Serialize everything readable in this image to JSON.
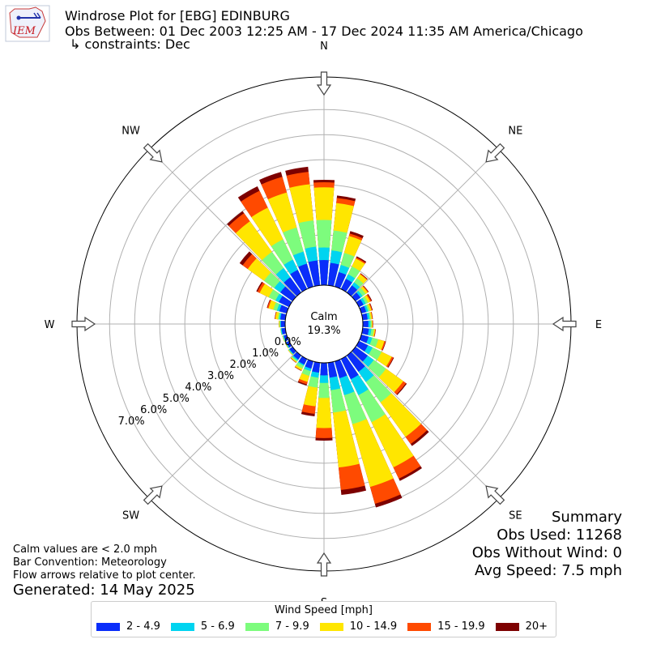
{
  "header": {
    "logo_text": "IEM",
    "title": "Windrose Plot for [EBG] EDINBURG",
    "obs_between": "Obs Between: 01 Dec 2003 12:25 AM - 17 Dec 2024 11:35 AM America/Chicago",
    "constraints": "↳ constraints: Dec"
  },
  "summary": {
    "heading": "Summary",
    "obs_used": "Obs Used: 11268",
    "obs_without_wind": "Obs Without Wind: 0",
    "avg_speed": "Avg Speed: 7.5 mph"
  },
  "notes": {
    "calm": "Calm values are < 2.0 mph",
    "bar_convention": "Bar Convention: Meteorology",
    "flow_arrows": "Flow arrows relative to plot center.",
    "generated": "Generated: 14 May 2025"
  },
  "legend": {
    "title": "Wind Speed [mph]",
    "bins": [
      {
        "label": "2 - 4.9",
        "color": "#0a2dfa"
      },
      {
        "label": "5 - 6.9",
        "color": "#00d4f0"
      },
      {
        "label": "7 - 9.9",
        "color": "#7dfc7d"
      },
      {
        "label": "10 - 14.9",
        "color": "#ffe600"
      },
      {
        "label": "15 - 19.9",
        "color": "#ff4a00"
      },
      {
        "label": "20+",
        "color": "#7d0000"
      }
    ]
  },
  "chart_data": {
    "type": "windrose",
    "calm_label": "Calm",
    "calm_value": "19.3%",
    "bar_convention": "meteorology",
    "radial_ticks": [
      "0.0%",
      "1.0%",
      "2.0%",
      "3.0%",
      "4.0%",
      "5.0%",
      "6.0%",
      "7.0%"
    ],
    "radial_tick_values": [
      0,
      1,
      2,
      3,
      4,
      5,
      6,
      7
    ],
    "rmax_percent": 8.3,
    "direction_labels": [
      "N",
      "NE",
      "E",
      "SE",
      "S",
      "SW",
      "W",
      "NW"
    ],
    "speed_bins": [
      "2 - 4.9",
      "5 - 6.9",
      "7 - 9.9",
      "10 - 14.9",
      "15 - 19.9",
      "20+"
    ],
    "directions_deg": [
      0,
      10,
      20,
      30,
      40,
      50,
      60,
      70,
      80,
      90,
      100,
      110,
      120,
      130,
      140,
      150,
      160,
      170,
      180,
      190,
      200,
      210,
      220,
      230,
      240,
      250,
      260,
      270,
      280,
      290,
      300,
      310,
      320,
      330,
      340,
      350
    ],
    "cumulative_percent": [
      [
        1.0,
        1.5,
        2.6,
        3.9,
        4.1,
        4.2
      ],
      [
        0.9,
        1.4,
        2.2,
        3.3,
        3.5,
        3.6
      ],
      [
        0.6,
        0.9,
        1.4,
        2.1,
        2.2,
        2.3
      ],
      [
        0.45,
        0.65,
        1.0,
        1.35,
        1.4,
        1.45
      ],
      [
        0.35,
        0.5,
        0.7,
        0.9,
        0.93,
        0.95
      ],
      [
        0.25,
        0.35,
        0.5,
        0.6,
        0.63,
        0.65
      ],
      [
        0.2,
        0.3,
        0.4,
        0.5,
        0.55,
        0.58
      ],
      [
        0.2,
        0.28,
        0.35,
        0.42,
        0.45,
        0.47
      ],
      [
        0.2,
        0.28,
        0.33,
        0.38,
        0.4,
        0.41
      ],
      [
        0.22,
        0.3,
        0.35,
        0.38,
        0.4,
        0.41
      ],
      [
        0.25,
        0.35,
        0.45,
        0.5,
        0.52,
        0.53
      ],
      [
        0.3,
        0.45,
        0.7,
        0.95,
        1.0,
        1.02
      ],
      [
        0.4,
        0.6,
        1.0,
        1.45,
        1.52,
        1.55
      ],
      [
        0.6,
        0.9,
        1.5,
        2.35,
        2.48,
        2.52
      ],
      [
        0.8,
        1.3,
        2.3,
        4.0,
        4.35,
        4.45
      ],
      [
        0.9,
        1.6,
        2.8,
        4.8,
        5.3,
        5.4
      ],
      [
        0.7,
        1.4,
        2.6,
        5.2,
        5.9,
        6.05
      ],
      [
        0.6,
        1.1,
        2.0,
        4.2,
        5.1,
        5.3
      ],
      [
        0.5,
        0.8,
        1.4,
        2.6,
        3.0,
        3.1
      ],
      [
        0.4,
        0.6,
        1.0,
        1.75,
        2.05,
        2.15
      ],
      [
        0.3,
        0.4,
        0.6,
        0.85,
        0.95,
        1.0
      ],
      [
        0.25,
        0.3,
        0.42,
        0.5,
        0.52,
        0.53
      ],
      [
        0.2,
        0.25,
        0.3,
        0.34,
        0.35,
        0.36
      ],
      [
        0.15,
        0.18,
        0.2,
        0.22,
        0.22,
        0.22
      ],
      [
        0.12,
        0.15,
        0.17,
        0.18,
        0.18,
        0.18
      ],
      [
        0.12,
        0.15,
        0.17,
        0.18,
        0.18,
        0.18
      ],
      [
        0.15,
        0.18,
        0.2,
        0.2,
        0.2,
        0.2
      ],
      [
        0.17,
        0.2,
        0.22,
        0.25,
        0.25,
        0.25
      ],
      [
        0.2,
        0.25,
        0.3,
        0.4,
        0.42,
        0.43
      ],
      [
        0.3,
        0.4,
        0.55,
        0.75,
        0.8,
        0.82
      ],
      [
        0.45,
        0.6,
        0.9,
        1.3,
        1.4,
        1.45
      ],
      [
        0.6,
        0.9,
        1.4,
        2.2,
        2.45,
        2.6
      ],
      [
        0.75,
        1.2,
        2.0,
        3.5,
        3.9,
        4.0
      ],
      [
        0.85,
        1.3,
        2.2,
        3.6,
        4.35,
        4.55
      ],
      [
        0.95,
        1.45,
        2.45,
        3.9,
        4.55,
        4.75
      ],
      [
        1.0,
        1.55,
        2.6,
        4.05,
        4.55,
        4.75
      ]
    ]
  }
}
